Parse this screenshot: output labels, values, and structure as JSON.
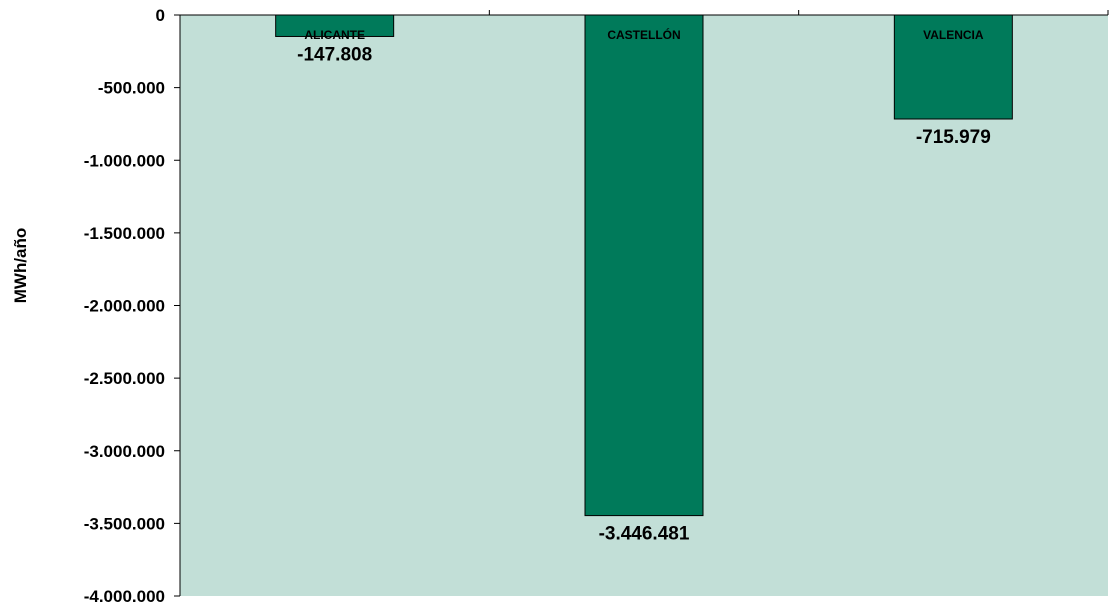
{
  "chart_data": {
    "type": "bar",
    "categories": [
      "ALICANTE",
      "CASTELLÓN",
      "VALENCIA"
    ],
    "values": [
      -147808,
      -3446481,
      -715979
    ],
    "value_labels": [
      "-147.808",
      "-3.446.481",
      "-715.979"
    ],
    "ylabel": "MWh/año",
    "ylim": [
      -4000000,
      0
    ],
    "yticks": [
      0,
      -500000,
      -1000000,
      -1500000,
      -2000000,
      -2500000,
      -3000000,
      -3500000,
      -4000000
    ],
    "ytick_labels": [
      "0",
      "-500.000",
      "-1.000.000",
      "-1.500.000",
      "-2.000.000",
      "-2.500.000",
      "-3.000.000",
      "-3.500.000",
      "-4.000.000"
    ],
    "grid": false,
    "legend": "none",
    "colors": {
      "plot_background": "#c2dfd7",
      "bar_fill": "#007a5a",
      "bar_stroke": "#000000"
    }
  }
}
